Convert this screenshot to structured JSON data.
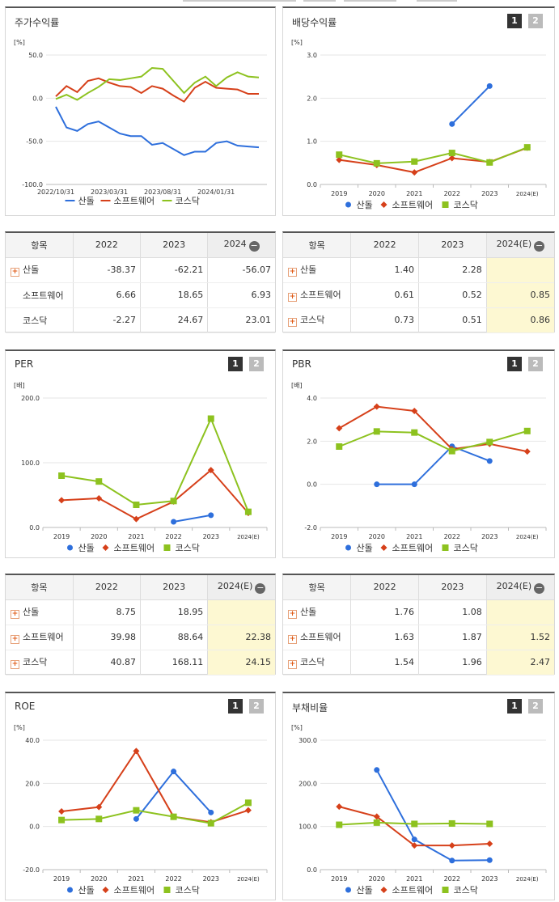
{
  "colors": {
    "sandol": "#2e6fdc",
    "software": "#d6401a",
    "kosdaq": "#8dc21f"
  },
  "series_names": [
    "산돌",
    "소프트웨어",
    "코스닥"
  ],
  "tables": {
    "returns": {
      "headers": [
        "항목",
        "2022",
        "2023",
        "2024"
      ],
      "rows": [
        [
          "산돌",
          "-38.37",
          "-62.21",
          "-56.07"
        ],
        [
          "소프트웨어",
          "6.66",
          "18.65",
          "6.93"
        ],
        [
          "코스닥",
          "-2.27",
          "24.67",
          "23.01"
        ]
      ],
      "plus": [
        true,
        false,
        false
      ]
    },
    "dividend": {
      "headers": [
        "항목",
        "2022",
        "2023",
        "2024(E)"
      ],
      "rows": [
        [
          "산돌",
          "1.40",
          "2.28",
          ""
        ],
        [
          "소프트웨어",
          "0.61",
          "0.52",
          "0.85"
        ],
        [
          "코스닥",
          "0.73",
          "0.51",
          "0.86"
        ]
      ],
      "plus": [
        true,
        true,
        true
      ]
    },
    "per": {
      "headers": [
        "항목",
        "2022",
        "2023",
        "2024(E)"
      ],
      "rows": [
        [
          "산돌",
          "8.75",
          "18.95",
          ""
        ],
        [
          "소프트웨어",
          "39.98",
          "88.64",
          "22.38"
        ],
        [
          "코스닥",
          "40.87",
          "168.11",
          "24.15"
        ]
      ],
      "plus": [
        true,
        true,
        true
      ]
    },
    "pbr": {
      "headers": [
        "항목",
        "2022",
        "2023",
        "2024(E)"
      ],
      "rows": [
        [
          "산돌",
          "1.76",
          "1.08",
          ""
        ],
        [
          "소프트웨어",
          "1.63",
          "1.87",
          "1.52"
        ],
        [
          "코스닥",
          "1.54",
          "1.96",
          "2.47"
        ]
      ],
      "plus": [
        true,
        true,
        true
      ]
    }
  },
  "chart_data": [
    {
      "id": "returns",
      "type": "line",
      "title": "주가수익률",
      "unit": "[%]",
      "buttons": [],
      "ylim": [
        -100,
        50
      ],
      "yticks": [
        "50.0",
        "0.0",
        "-50.0",
        "-100.0"
      ],
      "ytick_vals": [
        50,
        0,
        -50,
        -100
      ],
      "xtick_labels": [
        "2022/10/31",
        "2023/03/31",
        "2023/08/31",
        "2024/01/31"
      ],
      "xtick_idx": [
        0,
        5,
        10,
        15
      ],
      "npts": 20,
      "series": [
        {
          "name": "산돌",
          "values": [
            -10,
            -34,
            -38,
            -30,
            -27,
            -34,
            -41,
            -44,
            -44,
            -54,
            -52,
            -59,
            -66,
            -62,
            -62,
            -52,
            -50,
            -55,
            -56,
            -57
          ]
        },
        {
          "name": "소프트웨어",
          "values": [
            2,
            14,
            7,
            20,
            23,
            18,
            14,
            13,
            6,
            14,
            11,
            3,
            -4,
            12,
            19,
            12,
            11,
            10,
            5,
            5
          ]
        },
        {
          "name": "코스닥",
          "values": [
            -1,
            4,
            -2,
            6,
            13,
            22,
            21,
            23,
            25,
            35,
            34,
            20,
            6,
            18,
            25,
            14,
            24,
            30,
            25,
            24
          ]
        }
      ]
    },
    {
      "id": "dividend",
      "type": "line",
      "title": "배당수익률",
      "unit": "[%]",
      "buttons": [
        "1",
        "2"
      ],
      "ylim": [
        0,
        3
      ],
      "yticks": [
        "3.0",
        "2.0",
        "1.0",
        "0.0"
      ],
      "ytick_vals": [
        3,
        2,
        1,
        0
      ],
      "categories": [
        "2019",
        "2020",
        "2021",
        "2022",
        "2023",
        "2024(E)"
      ],
      "series": [
        {
          "name": "산돌",
          "values": [
            null,
            null,
            null,
            1.4,
            2.28,
            null
          ]
        },
        {
          "name": "소프트웨어",
          "values": [
            0.57,
            0.45,
            0.28,
            0.61,
            0.52,
            0.85
          ]
        },
        {
          "name": "코스닥",
          "values": [
            0.69,
            0.49,
            0.53,
            0.73,
            0.51,
            0.86
          ]
        }
      ]
    },
    {
      "id": "per",
      "type": "line",
      "title": "PER",
      "unit": "[배]",
      "buttons": [
        "1",
        "2"
      ],
      "ylim": [
        0,
        200
      ],
      "yticks": [
        "200.0",
        "100.0",
        "0.0"
      ],
      "ytick_vals": [
        200,
        100,
        0
      ],
      "categories": [
        "2019",
        "2020",
        "2021",
        "2022",
        "2023",
        "2024(E)"
      ],
      "series": [
        {
          "name": "산돌",
          "values": [
            null,
            null,
            null,
            8.75,
            18.95,
            null
          ]
        },
        {
          "name": "소프트웨어",
          "values": [
            42,
            45,
            13,
            39.98,
            88.64,
            22.38
          ]
        },
        {
          "name": "코스닥",
          "values": [
            80,
            71,
            35,
            40.87,
            168.11,
            24.15
          ]
        }
      ]
    },
    {
      "id": "pbr",
      "type": "line",
      "title": "PBR",
      "unit": "[배]",
      "buttons": [
        "1",
        "2"
      ],
      "ylim": [
        -2,
        4
      ],
      "yticks": [
        "4.0",
        "2.0",
        "0.0",
        "-2.0"
      ],
      "ytick_vals": [
        4,
        2,
        0,
        -2
      ],
      "categories": [
        "2019",
        "2020",
        "2021",
        "2022",
        "2023",
        "2024(E)"
      ],
      "series": [
        {
          "name": "산돌",
          "values": [
            null,
            0.0,
            0.0,
            1.76,
            1.08,
            null
          ]
        },
        {
          "name": "소프트웨어",
          "values": [
            2.6,
            3.6,
            3.4,
            1.63,
            1.87,
            1.52
          ]
        },
        {
          "name": "코스닥",
          "values": [
            1.75,
            2.45,
            2.4,
            1.54,
            1.96,
            2.47
          ]
        }
      ]
    },
    {
      "id": "roe",
      "type": "line",
      "title": "ROE",
      "unit": "[%]",
      "buttons": [
        "1",
        "2"
      ],
      "ylim": [
        -20,
        40
      ],
      "yticks": [
        "40.0",
        "20.0",
        "0.0",
        "-20.0"
      ],
      "ytick_vals": [
        40,
        20,
        0,
        -20
      ],
      "categories": [
        "2019",
        "2020",
        "2021",
        "2022",
        "2023",
        "2024(E)"
      ],
      "series": [
        {
          "name": "산돌",
          "values": [
            null,
            null,
            3.5,
            25.5,
            6.5,
            null
          ]
        },
        {
          "name": "소프트웨어",
          "values": [
            7,
            9,
            35,
            4.5,
            2,
            7.5
          ]
        },
        {
          "name": "코스닥",
          "values": [
            3,
            3.5,
            7.5,
            4.5,
            1.5,
            11
          ]
        }
      ]
    },
    {
      "id": "debt",
      "type": "line",
      "title": "부채비율",
      "unit": "[%]",
      "buttons": [
        "1",
        "2"
      ],
      "ylim": [
        0,
        300
      ],
      "yticks": [
        "300.0",
        "200.0",
        "100.0",
        "0.0"
      ],
      "ytick_vals": [
        300,
        200,
        100,
        0
      ],
      "categories": [
        "2019",
        "2020",
        "2021",
        "2022",
        "2023",
        "2024(E)"
      ],
      "series": [
        {
          "name": "산돌",
          "values": [
            null,
            231,
            70,
            21,
            22,
            null
          ]
        },
        {
          "name": "소프트웨어",
          "values": [
            146,
            123,
            56,
            56,
            60,
            null
          ]
        },
        {
          "name": "코스닥",
          "values": [
            104,
            109,
            106,
            107,
            106,
            null
          ]
        }
      ]
    }
  ]
}
